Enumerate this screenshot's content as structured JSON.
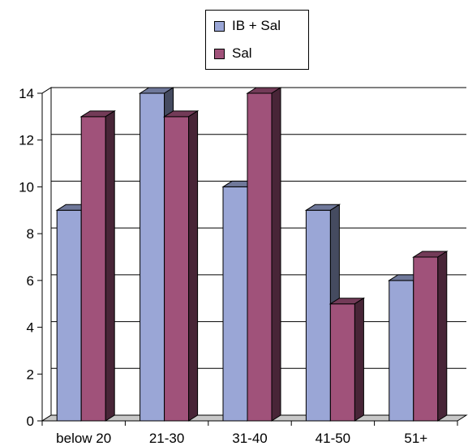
{
  "chart_data": {
    "type": "bar",
    "categories": [
      "below 20",
      "21-30",
      "31-40",
      "41-50",
      "51+"
    ],
    "series": [
      {
        "name": "IB + Sal",
        "values": [
          9,
          14,
          10,
          9,
          6
        ],
        "color": "#9aa6d6"
      },
      {
        "name": "Sal",
        "values": [
          13,
          13,
          14,
          5,
          7
        ],
        "color": "#a0527a"
      }
    ],
    "yticks": [
      "0",
      "2",
      "4",
      "6",
      "8",
      "10",
      "12",
      "14"
    ],
    "ylim": [
      0,
      14
    ],
    "grid": true,
    "legend_position": "top-center",
    "style": "3d-clustered-column"
  }
}
